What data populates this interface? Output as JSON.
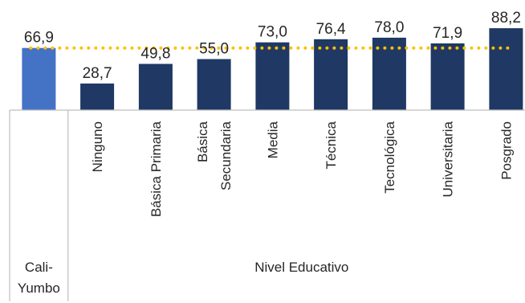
{
  "chart_data": {
    "type": "bar",
    "categories": [
      "Cali-Yumbo",
      "Ninguno",
      "Básica Primaria",
      "Básica Secundaria",
      "Media",
      "Técnica",
      "Tecnológica",
      "Universitaria",
      "Posgrado"
    ],
    "category_lines": [
      [
        "Cali-",
        "Yumbo"
      ],
      [
        "Ninguno"
      ],
      [
        "Básica Primaria"
      ],
      [
        "Básica",
        "Secundaria"
      ],
      [
        "Media"
      ],
      [
        "Técnica"
      ],
      [
        "Tecnológica"
      ],
      [
        "Universitaria"
      ],
      [
        "Posgrado"
      ]
    ],
    "values": [
      66.9,
      28.7,
      49.8,
      55.0,
      73.0,
      76.4,
      78.0,
      71.9,
      88.2
    ],
    "value_labels": [
      "66,9",
      "28,7",
      "49,8",
      "55,0",
      "73,0",
      "76,4",
      "78,0",
      "71,9",
      "88,2"
    ],
    "groups": [
      {
        "label": "",
        "categories": [
          "Cali-Yumbo"
        ]
      },
      {
        "label": "Nivel Educativo",
        "categories": [
          "Ninguno",
          "Básica Primaria",
          "Básica Secundaria",
          "Media",
          "Técnica",
          "Tecnológica",
          "Universitaria",
          "Posgrado"
        ]
      }
    ],
    "reference_line": {
      "value": 66.9,
      "style": "dotted"
    },
    "ylim": [
      0,
      100
    ],
    "grid": false,
    "legend": "none",
    "colors": {
      "highlight": "#4472C4",
      "bars": "#1F3864",
      "reference_line": "#FFC000",
      "axis": "#BFBFBF"
    }
  }
}
